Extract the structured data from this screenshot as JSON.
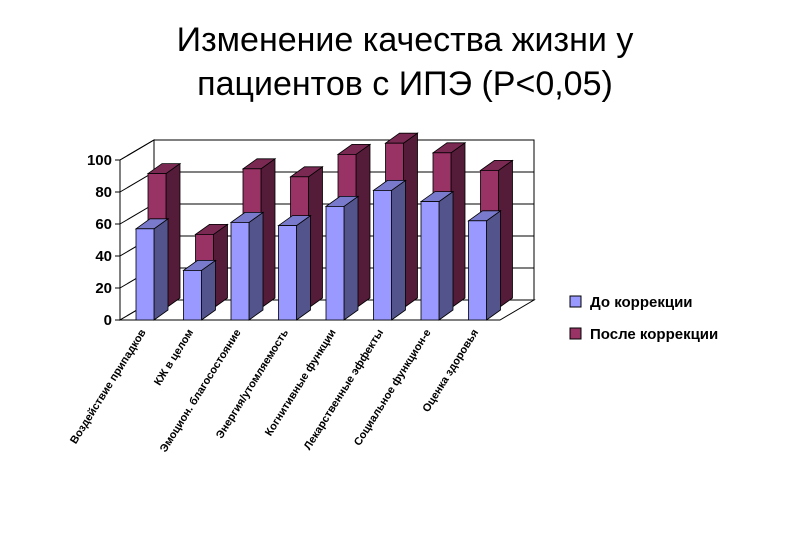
{
  "title": {
    "line1": "Изменение качества жизни у",
    "line2": "пациентов с ИПЭ (P<0,05)"
  },
  "chart_data": {
    "type": "bar",
    "title": "Изменение качества жизни у пациентов с ИПЭ (P<0,05)",
    "categories": [
      "Воздействие припадков",
      "КЖ в целом",
      "Эмоцион. благосостояние",
      "Энергия/утомляемость",
      "Когнитивные функции",
      "Лекарственные эффекты",
      "Социальное функцион-е",
      "Оценка здоровья"
    ],
    "series": [
      {
        "name": "До коррекции",
        "values": [
          57,
          31,
          61,
          59,
          71,
          81,
          74,
          62
        ],
        "color": "#9999ff"
      },
      {
        "name": "После коррекции",
        "values": [
          84,
          46,
          87,
          82,
          96,
          103,
          97,
          86
        ],
        "color": "#993366"
      }
    ],
    "yticks": [
      "0",
      "20",
      "40",
      "60",
      "80",
      "100"
    ],
    "ylim": [
      0,
      100
    ],
    "grid": true,
    "legend_position": "right",
    "style": "3d-stacked-depth"
  }
}
